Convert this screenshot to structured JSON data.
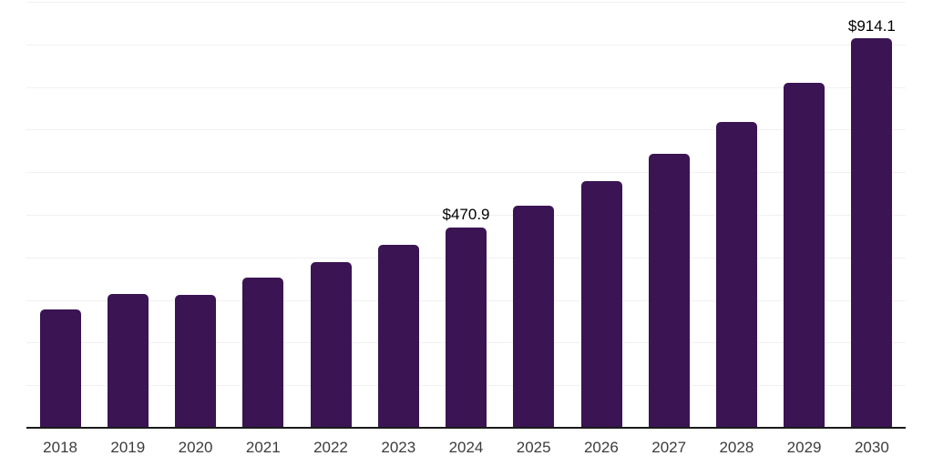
{
  "chart_data": {
    "type": "bar",
    "title": "",
    "xlabel": "",
    "ylabel": "",
    "categories": [
      "2018",
      "2019",
      "2020",
      "2021",
      "2022",
      "2023",
      "2024",
      "2025",
      "2026",
      "2027",
      "2028",
      "2029",
      "2030"
    ],
    "values": [
      278,
      315,
      312,
      353,
      389,
      430,
      470.9,
      522,
      580,
      644,
      717,
      811,
      914.1
    ],
    "labels": [
      "",
      "",
      "",
      "",
      "",
      "",
      "$470.9",
      "",
      "",
      "",
      "",
      "",
      "$914.1"
    ],
    "ylim": [
      0,
      1000
    ],
    "gridline_step": 100,
    "grid": true,
    "legend": false,
    "y_tick_labels_visible": false,
    "bar_color": "#3A1453",
    "grid_color": "#F1F1F1",
    "axis_color": "#1A1A1A",
    "tick_label_color": "#3C3C3C",
    "data_label_color": "#000000"
  }
}
